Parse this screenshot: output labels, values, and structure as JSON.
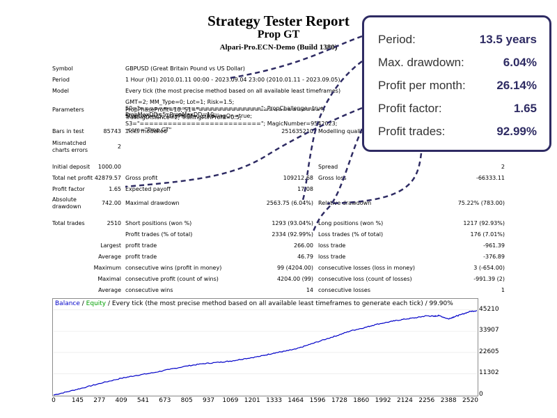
{
  "report": {
    "title": "Strategy Tester Report",
    "subtitle": "Prop GT",
    "server": "Alpari-Pro.ECN-Demo (Build 1380)"
  },
  "info": {
    "symbol_label": "Symbol",
    "symbol_value": "GBPUSD (Great Britain Pound vs US Dollar)",
    "period_label": "Period",
    "period_value": "1 Hour (H1) 2010.01.11 00:00 - 2023.09.04 23:00 (2010.01.11 - 2023.09.05)",
    "model_label": "Model",
    "model_value": "Every tick (the most precise method based on all available least timeframes)",
    "parameters_label": "Parameters",
    "parameters_line1": "GMT=2; MM_Type=0; Lot=1; Risk=1.5; S0=\"==========================\"; PropChallenge=true; PropMaxDD=5; PropMaxDD=10;",
    "parameters_line2": "PropPhaseProfit=10; S1=\"==========================\"; StopLoss=25; TakeProfit=...; TrailingOn=true;",
    "parameters_line3": "TrailingDistance=2; TrailingMinProfit=0.5; S3=\"==========================\"; MagicNumber=9542023; _com=\"Prop GT\"",
    "bars_label": "Bars in test",
    "bars_value": "85743",
    "ticks_label": "Ticks modelled",
    "ticks_value": "251635210",
    "quality_label": "Modelling quality",
    "quality_value": "99.90%",
    "mismatch_label_1": "Mismatched",
    "mismatch_label_2": "charts errors",
    "mismatch_value": "2"
  },
  "stats": {
    "initial_deposit_label": "Initial deposit",
    "initial_deposit_value": "1000.00",
    "spread_label": "Spread",
    "spread_value": "2",
    "net_profit_label": "Total net profit",
    "net_profit_value": "42879.57",
    "gross_profit_label": "Gross profit",
    "gross_profit_value": "109212.68",
    "gross_loss_label": "Gross loss",
    "gross_loss_value": "-66333.11",
    "profit_factor_label": "Profit factor",
    "profit_factor_value": "1.65",
    "expected_payoff_label": "Expected payoff",
    "expected_payoff_value": "17.08",
    "abs_dd_label_1": "Absolute",
    "abs_dd_label_2": "drawdown",
    "abs_dd_value": "742.00",
    "max_dd_label": "Maximal drawdown",
    "max_dd_value": "2563.75 (6.04%)",
    "rel_dd_label": "Relative drawdown",
    "rel_dd_value": "75.22% (783.00)",
    "total_trades_label": "Total trades",
    "total_trades_value": "2510",
    "short_label": "Short positions (won %)",
    "short_value": "1293 (93.04%)",
    "long_label": "Long positions (won %)",
    "long_value": "1217 (92.93%)",
    "profit_trades_label": "Profit trades (% of total)",
    "profit_trades_value": "2334 (92.99%)",
    "loss_trades_label": "Loss trades (% of total)",
    "loss_trades_value": "176 (7.01%)",
    "largest_label": "Largest",
    "largest_profit_label": "profit trade",
    "largest_profit_value": "266.00",
    "largest_loss_label": "loss trade",
    "largest_loss_value": "-961.39",
    "average_label": "Average",
    "average_profit_label": "profit trade",
    "average_profit_value": "46.79",
    "average_loss_label": "loss trade",
    "average_loss_value": "-376.89",
    "maximum_label": "Maximum",
    "max_cons_wins_label": "consecutive wins (profit in money)",
    "max_cons_wins_value": "99 (4204.00)",
    "max_cons_losses_label": "consecutive losses (loss in money)",
    "max_cons_losses_value": "3 (-654.00)",
    "maximal_label": "Maximal",
    "maximal_profit_label": "consecutive profit (count of wins)",
    "maximal_profit_value": "4204.00 (99)",
    "maximal_loss_label": "consecutive loss (count of losses)",
    "maximal_loss_value": "-991.39 (2)",
    "avg_cons_label": "Average",
    "avg_cons_wins_label": "consecutive wins",
    "avg_cons_wins_value": "14",
    "avg_cons_losses_label": "consecutive losses",
    "avg_cons_losses_value": "1"
  },
  "summary_card": {
    "rows": [
      {
        "label": "Period:",
        "value": "13.5 years"
      },
      {
        "label": "Max. drawdown:",
        "value": "6.04%"
      },
      {
        "label": "Profit per month:",
        "value": "26.14%"
      },
      {
        "label": "Profit factor:",
        "value": "1.65"
      },
      {
        "label": "Profit trades:",
        "value": "92.99%"
      }
    ],
    "accent_color": "#2e2b63"
  },
  "chart_data": {
    "type": "line",
    "legend_balance": "Balance",
    "legend_sep": " / ",
    "legend_equity": "Equity",
    "legend_rest": " / Every tick (the most precise method based on all available least timeframes to generate each tick) / 99.90%",
    "balance_color": "#0000c8",
    "equity_color": "#00a000",
    "x_ticks": [
      "0",
      "145",
      "277",
      "409",
      "541",
      "673",
      "805",
      "937",
      "1069",
      "1201",
      "1333",
      "1464",
      "1596",
      "1728",
      "1860",
      "1992",
      "2124",
      "2256",
      "2388",
      "2520"
    ],
    "y_ticks": [
      "45210",
      "33907",
      "22605",
      "11302",
      "0"
    ],
    "xlim": [
      0,
      2560
    ],
    "ylim": [
      0,
      47000
    ],
    "series": [
      {
        "name": "Balance",
        "x": [
          0,
          100,
          200,
          300,
          409,
          500,
          600,
          700,
          805,
          900,
          1000,
          1069,
          1150,
          1250,
          1333,
          1400,
          1464,
          1550,
          1650,
          1728,
          1800,
          1880,
          1950,
          2050,
          2124,
          2200,
          2256,
          2300,
          2330,
          2388,
          2420,
          2460,
          2520,
          2560
        ],
        "values": [
          0,
          2100,
          4300,
          6600,
          8900,
          10400,
          11800,
          13600,
          15400,
          16600,
          17400,
          18000,
          19200,
          20600,
          22300,
          23300,
          24400,
          26900,
          29800,
          32000,
          34200,
          35800,
          37500,
          39200,
          40300,
          41200,
          42100,
          41800,
          42200,
          40400,
          41500,
          42600,
          44400,
          44800
        ]
      }
    ]
  }
}
